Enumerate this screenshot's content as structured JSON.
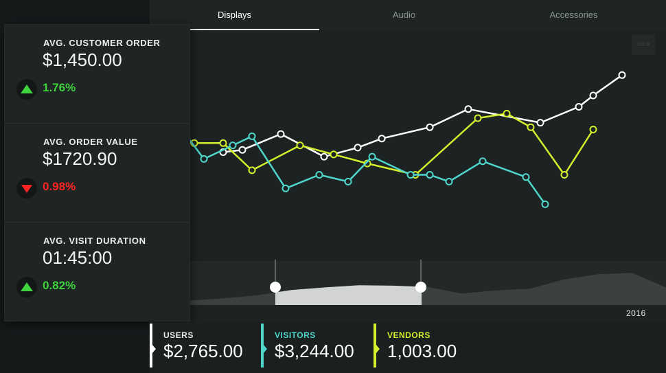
{
  "tabs": [
    {
      "label": "Displays",
      "active": true
    },
    {
      "label": "Audio",
      "active": false
    },
    {
      "label": "Accessories",
      "active": false
    }
  ],
  "menu": {
    "icon": "more-dots-icon",
    "glyph": "○○○"
  },
  "kpis": [
    {
      "label": "AVG. CUSTOMER ORDER",
      "value": "$1,450.00",
      "change": "1.76%",
      "direction": "up",
      "color": "#3fd23f",
      "icon": "arrow-up-icon"
    },
    {
      "label": "AVG. ORDER VALUE",
      "value": "$1720.90",
      "change": "0.98%",
      "direction": "down",
      "color": "#ff2424",
      "icon": "arrow-down-icon"
    },
    {
      "label": "AVG. VISIT DURATION",
      "value": "01:45:00",
      "change": "0.82%",
      "direction": "up",
      "color": "#3fd23f",
      "icon": "arrow-up-icon"
    }
  ],
  "summary": [
    {
      "label": "USERS",
      "value": "$2,765.00",
      "color": "#ffffff"
    },
    {
      "label": "VISITORS",
      "value": "$3,244.00",
      "color": "#4fd6cc"
    },
    {
      "label": "VENDORS",
      "value": "1,003.00",
      "color": "#d4ef2c"
    }
  ],
  "timeline": {
    "year_label": "2016",
    "overview_levels": [
      0.1,
      0.15,
      0.22,
      0.34,
      0.4,
      0.45,
      0.44,
      0.41,
      0.26,
      0.33,
      0.37,
      0.58,
      0.7,
      0.73,
      0.4
    ]
  },
  "chart_data": {
    "type": "line",
    "title": "",
    "xlabel": "",
    "ylabel": "",
    "grid": false,
    "legend": "none",
    "ylim": [
      0,
      1
    ],
    "series": [
      {
        "color": "#ffffff",
        "x": [
          0.1,
          0.14,
          0.22,
          0.31,
          0.38,
          0.43,
          0.53,
          0.61,
          0.76,
          0.84,
          0.87,
          0.93
        ],
        "y": [
          0.45,
          0.46,
          0.53,
          0.43,
          0.47,
          0.51,
          0.56,
          0.64,
          0.58,
          0.65,
          0.7,
          0.79
        ]
      },
      {
        "color": "#d4ef2c",
        "x": [
          0.01,
          0.04,
          0.1,
          0.16,
          0.26,
          0.33,
          0.4,
          0.5,
          0.63,
          0.69,
          0.74,
          0.81,
          0.87
        ],
        "y": [
          0.49,
          0.49,
          0.49,
          0.37,
          0.48,
          0.44,
          0.4,
          0.35,
          0.6,
          0.62,
          0.56,
          0.35,
          0.55
        ]
      },
      {
        "color": "#4fd6cc",
        "x": [
          0.0,
          0.06,
          0.12,
          0.16,
          0.23,
          0.3,
          0.36,
          0.41,
          0.49,
          0.53,
          0.57,
          0.64,
          0.73,
          0.77
        ],
        "y": [
          0.59,
          0.42,
          0.48,
          0.52,
          0.29,
          0.35,
          0.32,
          0.43,
          0.35,
          0.35,
          0.32,
          0.41,
          0.34,
          0.22
        ]
      }
    ]
  }
}
